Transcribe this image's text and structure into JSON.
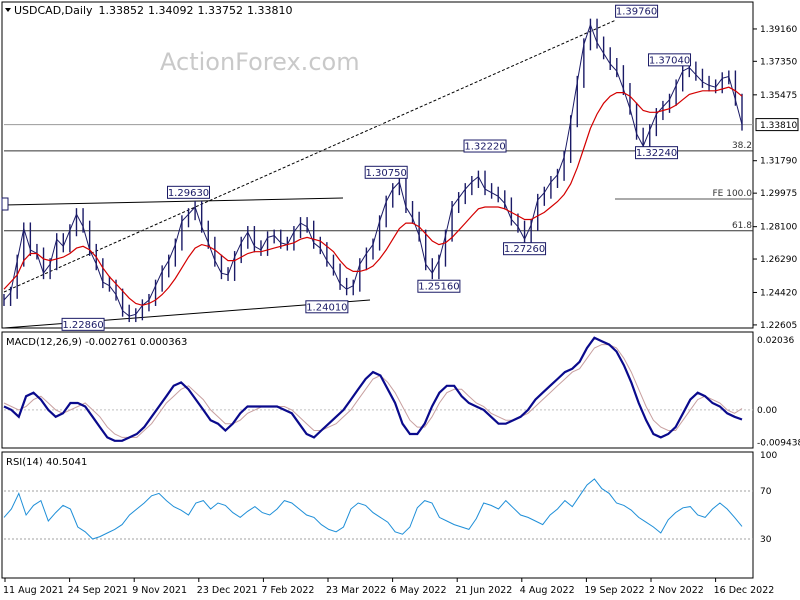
{
  "chart_data": {
    "type": "line",
    "title": "USDCAD,Daily",
    "ohlc": {
      "open": "1.33852",
      "high": "1.34092",
      "low": "1.33752",
      "close": "1.33810"
    },
    "watermark": "ActionForex.com",
    "x_tick_labels": [
      "11 Aug 2021",
      "24 Sep 2021",
      "9 Nov 2021",
      "23 Dec 2021",
      "7 Feb 2022",
      "23 Mar 2022",
      "6 May 2022",
      "21 Jun 2022",
      "4 Aug 2022",
      "19 Sep 2022",
      "2 Nov 2022",
      "16 Dec 2022"
    ],
    "price_panel": {
      "ylim": [
        1.226,
        1.405
      ],
      "y_ticks": [
        "1.39160",
        "1.37350",
        "1.35475",
        "1.31790",
        "1.29975",
        "1.28100",
        "1.26290",
        "1.24420",
        "1.22605"
      ],
      "last_price_label": "1.33810",
      "series": [
        {
          "name": "price",
          "color": "#1a1a66",
          "values": [
            1.24,
            1.244,
            1.262,
            1.28,
            1.268,
            1.266,
            1.255,
            1.26,
            1.274,
            1.27,
            1.279,
            1.288,
            1.281,
            1.268,
            1.26,
            1.25,
            1.248,
            1.243,
            1.234,
            1.231,
            1.232,
            1.237,
            1.24,
            1.248,
            1.256,
            1.262,
            1.271,
            1.284,
            1.288,
            1.292,
            1.281,
            1.272,
            1.262,
            1.255,
            1.254,
            1.264,
            1.272,
            1.278,
            1.27,
            1.268,
            1.275,
            1.276,
            1.272,
            1.271,
            1.278,
            1.283,
            1.281,
            1.272,
            1.269,
            1.262,
            1.257,
            1.249,
            1.246,
            1.248,
            1.26,
            1.266,
            1.271,
            1.284,
            1.295,
            1.302,
            1.306,
            1.292,
            1.286,
            1.276,
            1.26,
            1.255,
            1.262,
            1.276,
            1.292,
            1.297,
            1.302,
            1.306,
            1.309,
            1.302,
            1.3,
            1.298,
            1.294,
            1.285,
            1.281,
            1.274,
            1.282,
            1.296,
            1.3,
            1.306,
            1.31,
            1.32,
            1.34,
            1.362,
            1.383,
            1.394,
            1.384,
            1.378,
            1.372,
            1.368,
            1.358,
            1.347,
            1.333,
            1.326,
            1.335,
            1.344,
            1.348,
            1.352,
            1.36,
            1.368,
            1.37,
            1.366,
            1.362,
            1.36,
            1.359,
            1.364,
            1.365,
            1.352,
            1.3381
          ]
        },
        {
          "name": "MA",
          "color": "#d40000",
          "values": [
            1.246,
            1.25,
            1.254,
            1.262,
            1.266,
            1.266,
            1.263,
            1.262,
            1.263,
            1.264,
            1.266,
            1.269,
            1.27,
            1.268,
            1.264,
            1.258,
            1.253,
            1.249,
            1.245,
            1.241,
            1.238,
            1.237,
            1.238,
            1.24,
            1.243,
            1.247,
            1.252,
            1.258,
            1.264,
            1.269,
            1.271,
            1.27,
            1.268,
            1.265,
            1.262,
            1.262,
            1.264,
            1.266,
            1.267,
            1.267,
            1.268,
            1.269,
            1.27,
            1.271,
            1.272,
            1.274,
            1.275,
            1.274,
            1.273,
            1.27,
            1.267,
            1.262,
            1.258,
            1.256,
            1.256,
            1.257,
            1.259,
            1.263,
            1.268,
            1.274,
            1.28,
            1.283,
            1.283,
            1.281,
            1.277,
            1.273,
            1.271,
            1.272,
            1.275,
            1.279,
            1.283,
            1.287,
            1.291,
            1.292,
            1.292,
            1.292,
            1.291,
            1.289,
            1.287,
            1.285,
            1.285,
            1.287,
            1.289,
            1.292,
            1.295,
            1.299,
            1.305,
            1.314,
            1.325,
            1.336,
            1.344,
            1.35,
            1.354,
            1.356,
            1.356,
            1.354,
            1.35,
            1.346,
            1.345,
            1.345,
            1.346,
            1.347,
            1.349,
            1.352,
            1.355,
            1.356,
            1.357,
            1.357,
            1.357,
            1.358,
            1.359,
            1.357,
            1.354
          ]
        }
      ],
      "annotations": [
        {
          "label": "1.39760",
          "x": 96,
          "y": 1.3976
        },
        {
          "label": "1.37040",
          "x": 101,
          "y": 1.3704
        },
        {
          "label": "1.32220",
          "x": 73,
          "y": 1.3222
        },
        {
          "label": "1.32240",
          "x": 101,
          "y": 1.3224
        },
        {
          "label": "1.30750",
          "x": 58,
          "y": 1.3075
        },
        {
          "label": "1.29630",
          "x": 28,
          "y": 1.2963
        },
        {
          "label": "1.27260",
          "x": 79,
          "y": 1.2726
        },
        {
          "label": "1.25160",
          "x": 66,
          "y": 1.2516
        },
        {
          "label": "1.24010",
          "x": 49,
          "y": 1.2401
        },
        {
          "label": "1.22860",
          "x": 12,
          "y": 1.2286
        }
      ],
      "level_lines": [
        {
          "label": "38.2",
          "y": 1.3234
        },
        {
          "label": "FE 100.0",
          "y": 1.2965
        },
        {
          "label": "61.8",
          "y": 1.2787
        }
      ],
      "last_price_level": 1.3381
    },
    "macd_panel": {
      "label": "MACD(12,26,9) -0.002761 0.000363",
      "ylim": [
        -0.0105,
        0.0215
      ],
      "y_ticks": [
        "0.02036",
        "0.00",
        "-0.009438"
      ],
      "series": [
        {
          "name": "MACD",
          "color": "#0a0a8c",
          "values": [
            0.001,
            0.0,
            -0.002,
            0.004,
            0.005,
            0.003,
            0.0,
            -0.002,
            -0.001,
            0.002,
            0.002,
            0.001,
            -0.002,
            -0.005,
            -0.008,
            -0.009,
            -0.009,
            -0.008,
            -0.007,
            -0.005,
            -0.002,
            0.001,
            0.004,
            0.007,
            0.008,
            0.006,
            0.003,
            0.0,
            -0.003,
            -0.004,
            -0.006,
            -0.004,
            -0.001,
            0.001,
            0.001,
            0.001,
            0.001,
            0.001,
            0.0,
            -0.001,
            -0.004,
            -0.007,
            -0.008,
            -0.006,
            -0.004,
            -0.002,
            0.0,
            0.003,
            0.006,
            0.009,
            0.011,
            0.01,
            0.006,
            0.002,
            -0.004,
            -0.007,
            -0.007,
            -0.004,
            0.001,
            0.005,
            0.007,
            0.007,
            0.004,
            0.002,
            0.001,
            0.0,
            -0.002,
            -0.004,
            -0.004,
            -0.003,
            -0.002,
            0.0,
            0.003,
            0.005,
            0.007,
            0.009,
            0.011,
            0.012,
            0.014,
            0.018,
            0.021,
            0.02,
            0.019,
            0.017,
            0.013,
            0.008,
            0.002,
            -0.003,
            -0.007,
            -0.008,
            -0.007,
            -0.005,
            -0.001,
            0.003,
            0.005,
            0.004,
            0.002,
            0.001,
            -0.001,
            -0.002,
            -0.0028
          ]
        },
        {
          "name": "Signal",
          "color": "#c8a0a0",
          "values": [
            0.002,
            0.001,
            0.0,
            0.001,
            0.003,
            0.004,
            0.002,
            0.0,
            -0.001,
            0.0,
            0.001,
            0.002,
            0.0,
            -0.002,
            -0.005,
            -0.007,
            -0.008,
            -0.008,
            -0.008,
            -0.006,
            -0.004,
            -0.001,
            0.002,
            0.004,
            0.006,
            0.007,
            0.005,
            0.003,
            0.0,
            -0.002,
            -0.004,
            -0.004,
            -0.003,
            -0.001,
            0.0,
            0.001,
            0.001,
            0.001,
            0.001,
            0.0,
            -0.002,
            -0.004,
            -0.006,
            -0.006,
            -0.005,
            -0.004,
            -0.002,
            0.0,
            0.003,
            0.006,
            0.009,
            0.01,
            0.008,
            0.005,
            0.001,
            -0.003,
            -0.005,
            -0.005,
            -0.002,
            0.002,
            0.005,
            0.006,
            0.006,
            0.004,
            0.002,
            0.001,
            -0.001,
            -0.002,
            -0.003,
            -0.003,
            -0.002,
            -0.001,
            0.001,
            0.003,
            0.005,
            0.007,
            0.009,
            0.011,
            0.012,
            0.015,
            0.018,
            0.019,
            0.019,
            0.018,
            0.015,
            0.011,
            0.006,
            0.001,
            -0.003,
            -0.005,
            -0.006,
            -0.006,
            -0.003,
            0.0,
            0.003,
            0.004,
            0.003,
            0.002,
            0.0,
            -0.001,
            0.0004
          ]
        }
      ]
    },
    "rsi_panel": {
      "label": "RSI(14) 40.5041",
      "ylim": [
        0,
        100
      ],
      "y_ticks": [
        "100",
        "70",
        "30"
      ],
      "levels": [
        70,
        30
      ],
      "series": [
        {
          "name": "RSI",
          "color": "#1f8fd8",
          "values": [
            48,
            55,
            68,
            50,
            58,
            62,
            45,
            52,
            58,
            55,
            40,
            36,
            30,
            32,
            35,
            38,
            42,
            50,
            55,
            60,
            66,
            68,
            62,
            57,
            54,
            50,
            60,
            62,
            55,
            60,
            58,
            52,
            48,
            53,
            57,
            52,
            50,
            55,
            62,
            60,
            55,
            50,
            48,
            42,
            38,
            36,
            40,
            55,
            60,
            58,
            52,
            48,
            44,
            36,
            34,
            40,
            56,
            62,
            60,
            48,
            45,
            42,
            40,
            38,
            47,
            60,
            58,
            55,
            62,
            56,
            50,
            48,
            45,
            42,
            50,
            55,
            62,
            57,
            66,
            75,
            80,
            72,
            68,
            60,
            58,
            54,
            48,
            44,
            40,
            35,
            46,
            52,
            56,
            57,
            50,
            48,
            55,
            60,
            55,
            48,
            40.5
          ]
        }
      ]
    }
  }
}
